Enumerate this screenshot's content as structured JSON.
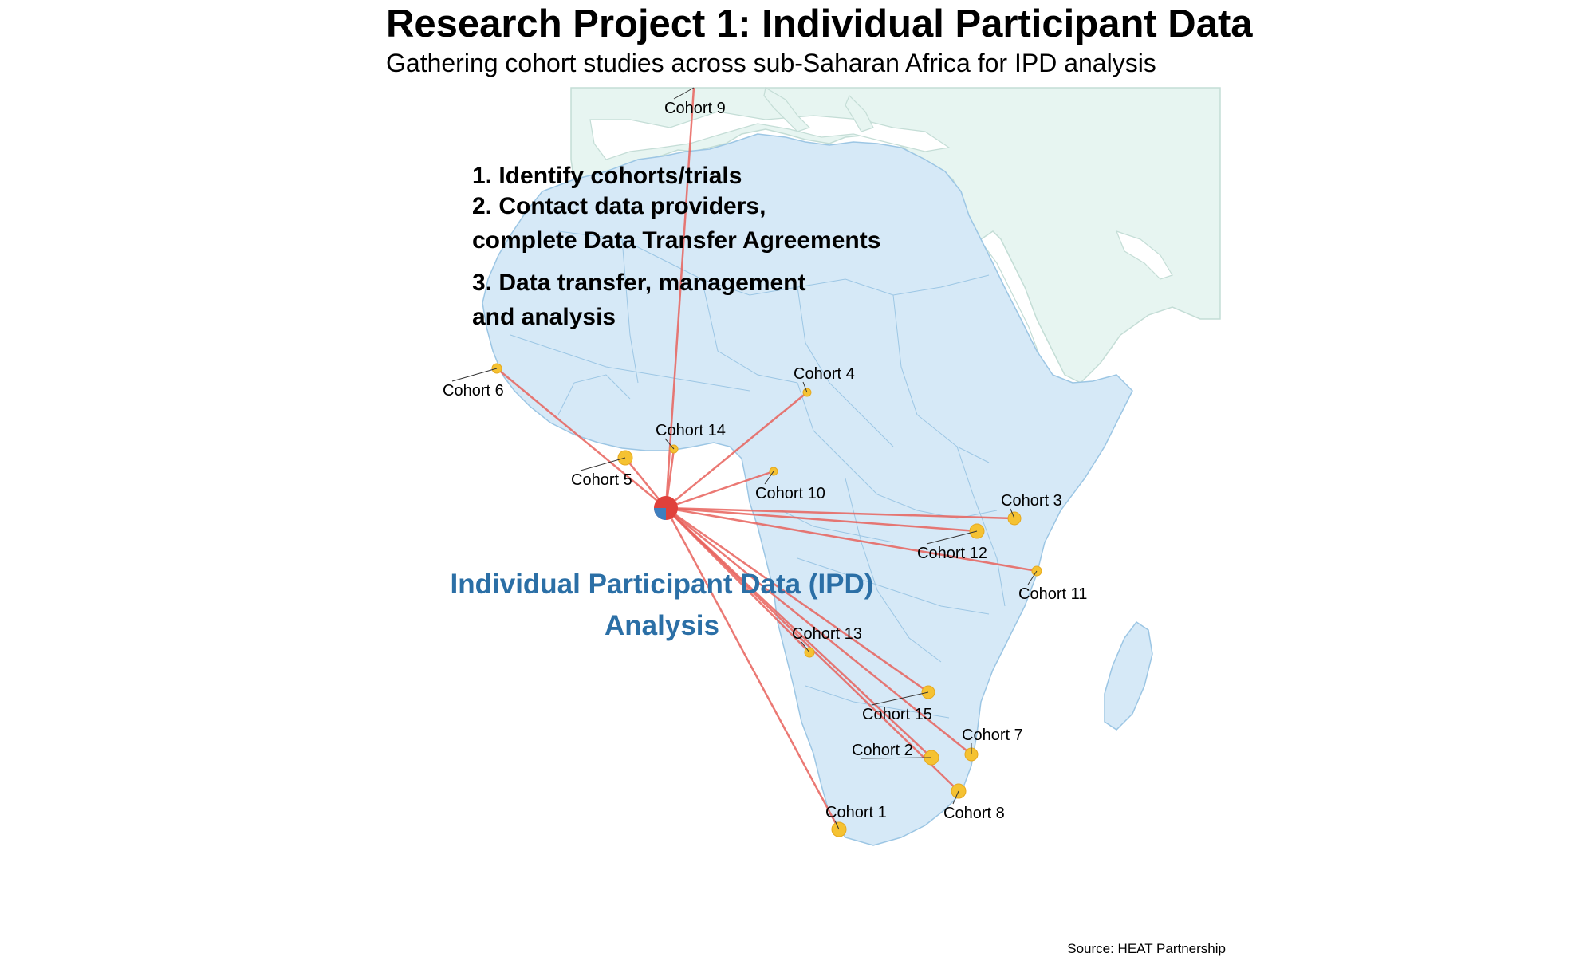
{
  "header": {
    "title": "Research Project 1: Individual Participant Data",
    "subtitle": "Gathering cohort studies across sub-Saharan Africa for IPD analysis"
  },
  "steps": {
    "line1": "1. Identify cohorts/trials",
    "line2": "2. Contact data providers,",
    "line3": "complete Data Transfer Agreements",
    "line4": "3. Data transfer, management",
    "line5": "and analysis"
  },
  "hub": {
    "label_line1": "Individual Participant Data (IPD)",
    "label_line2": "Analysis"
  },
  "cohorts": [
    {
      "name": "Cohort 1"
    },
    {
      "name": "Cohort 2"
    },
    {
      "name": "Cohort 3"
    },
    {
      "name": "Cohort 4"
    },
    {
      "name": "Cohort 5"
    },
    {
      "name": "Cohort 6"
    },
    {
      "name": "Cohort 7"
    },
    {
      "name": "Cohort 8"
    },
    {
      "name": "Cohort 9"
    },
    {
      "name": "Cohort 10"
    },
    {
      "name": "Cohort 11"
    },
    {
      "name": "Cohort 12"
    },
    {
      "name": "Cohort 13"
    },
    {
      "name": "Cohort 14"
    },
    {
      "name": "Cohort 15"
    }
  ],
  "source": "Source: HEAT Partnership",
  "colors": {
    "africa_fill": "#d6e9f7",
    "africa_border": "#9cc6e4",
    "other_land_fill": "#e7f5f1",
    "other_land_border": "#c4ddd6",
    "connection_line": "#e8625c",
    "hub_point": "#e0413b",
    "hub_marker": "#3f7fbf",
    "cohort_point": "#f5c232",
    "ipd_label": "#2b6fa6"
  }
}
